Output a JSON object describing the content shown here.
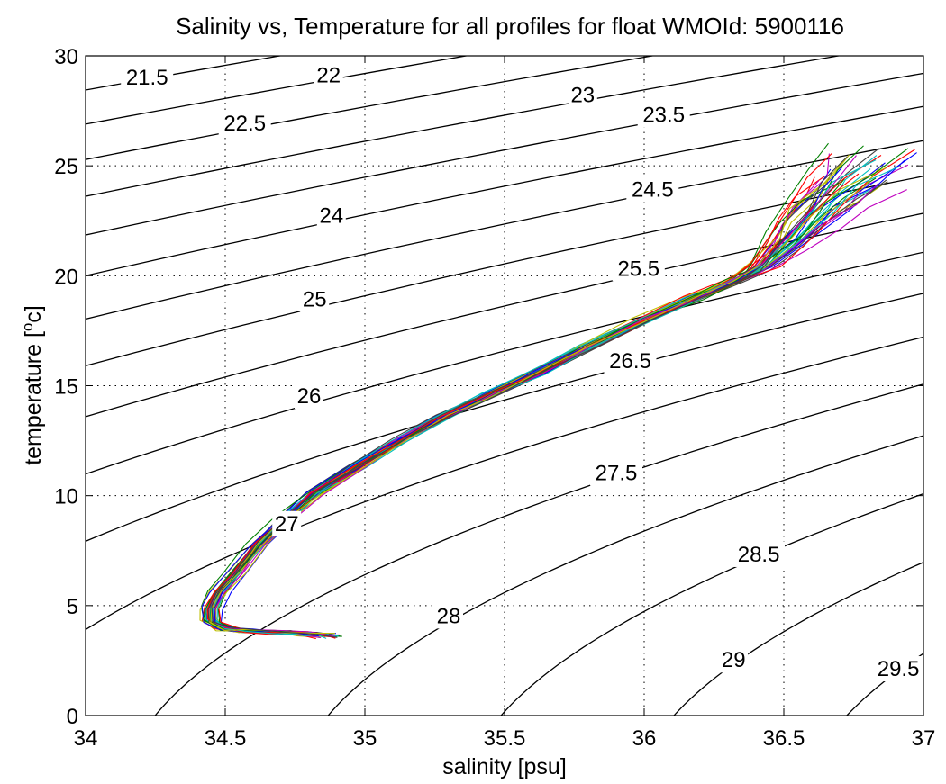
{
  "chart_data": {
    "type": "line",
    "title": "Salinity vs, Temperature for all profiles for float WMOId: 5900116",
    "xlabel": "salinity [psu]",
    "ylabel_main": "temperature [",
    "ylabel_sup": "o",
    "ylabel_tail": "c]",
    "xlim": [
      34,
      37
    ],
    "ylim": [
      0,
      30
    ],
    "xticks": [
      34,
      34.5,
      35,
      35.5,
      36,
      36.5,
      37
    ],
    "xtick_labels": [
      "34",
      "34.5",
      "35",
      "35.5",
      "36",
      "36.5",
      "37"
    ],
    "yticks": [
      0,
      5,
      10,
      15,
      20,
      25,
      30
    ],
    "ytick_labels": [
      "0",
      "5",
      "10",
      "15",
      "20",
      "25",
      "30"
    ],
    "grid": true,
    "density_contours": {
      "levels": [
        21.5,
        22,
        22.5,
        23,
        23.5,
        24,
        24.5,
        25,
        25.5,
        26,
        26.5,
        27,
        27.5,
        28,
        28.5,
        29,
        29.5
      ],
      "labels": [
        {
          "text": "21.5",
          "s": 34.22,
          "t": 28.7
        },
        {
          "text": "22",
          "s": 34.87,
          "t": 28.8
        },
        {
          "text": "22.5",
          "s": 34.57,
          "t": 26.6
        },
        {
          "text": "23",
          "s": 35.78,
          "t": 27.9
        },
        {
          "text": "23.5",
          "s": 36.07,
          "t": 27.0
        },
        {
          "text": "24",
          "s": 34.88,
          "t": 22.4
        },
        {
          "text": "24.5",
          "s": 36.03,
          "t": 23.6
        },
        {
          "text": "25",
          "s": 34.82,
          "t": 18.6
        },
        {
          "text": "25.5",
          "s": 35.98,
          "t": 20.0
        },
        {
          "text": "26",
          "s": 34.8,
          "t": 14.2
        },
        {
          "text": "26.5",
          "s": 35.95,
          "t": 15.8
        },
        {
          "text": "27",
          "s": 34.72,
          "t": 8.4
        },
        {
          "text": "27.5",
          "s": 35.9,
          "t": 10.7
        },
        {
          "text": "28",
          "s": 35.3,
          "t": 4.2
        },
        {
          "text": "28.5",
          "s": 36.41,
          "t": 7.0
        },
        {
          "text": "29",
          "s": 36.32,
          "t": 2.2
        },
        {
          "text": "29.5",
          "s": 36.91,
          "t": 1.8
        }
      ]
    },
    "profile_backbone": [
      [
        34.87,
        3.65
      ],
      [
        34.8,
        3.72
      ],
      [
        34.7,
        3.78
      ],
      [
        34.58,
        3.85
      ],
      [
        34.5,
        3.95
      ],
      [
        34.45,
        4.3
      ],
      [
        34.45,
        4.9
      ],
      [
        34.48,
        5.6
      ],
      [
        34.54,
        6.5
      ],
      [
        34.62,
        7.8
      ],
      [
        34.72,
        9.0
      ],
      [
        34.82,
        10.1
      ],
      [
        34.97,
        11.3
      ],
      [
        35.12,
        12.5
      ],
      [
        35.28,
        13.6
      ],
      [
        35.45,
        14.6
      ],
      [
        35.62,
        15.6
      ],
      [
        35.8,
        16.8
      ],
      [
        36.0,
        18.0
      ],
      [
        36.18,
        19.0
      ],
      [
        36.33,
        19.8
      ],
      [
        36.42,
        20.4
      ],
      [
        36.52,
        21.6
      ],
      [
        36.6,
        22.8
      ],
      [
        36.7,
        24.0
      ],
      [
        36.8,
        25.0
      ]
    ],
    "series_colors": [
      "#0000ff",
      "#008000",
      "#ff0000",
      "#00bfbf",
      "#bf00bf",
      "#bfbf00",
      "#404040"
    ],
    "series_count": 42
  }
}
